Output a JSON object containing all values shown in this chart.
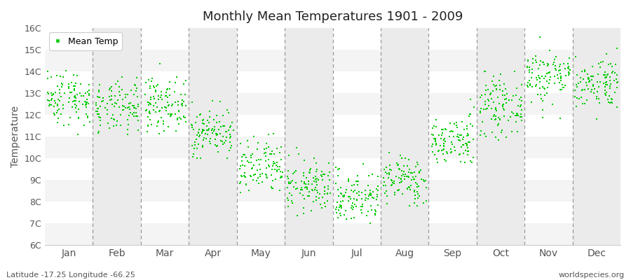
{
  "title": "Monthly Mean Temperatures 1901 - 2009",
  "ylabel": "Temperature",
  "bottom_left": "Latitude -17.25 Longitude -66.25",
  "bottom_right": "worldspecies.org",
  "legend_label": "Mean Temp",
  "ylim": [
    6,
    16
  ],
  "ytick_labels": [
    "6C",
    "7C",
    "8C",
    "9C",
    "10C",
    "11C",
    "12C",
    "13C",
    "14C",
    "15C",
    "16C"
  ],
  "ytick_values": [
    6,
    7,
    8,
    9,
    10,
    11,
    12,
    13,
    14,
    15,
    16
  ],
  "months": [
    "Jan",
    "Feb",
    "Mar",
    "Apr",
    "May",
    "Jun",
    "Jul",
    "Aug",
    "Sep",
    "Oct",
    "Nov",
    "Dec"
  ],
  "dot_color": "#00CC00",
  "background_color": "#ffffff",
  "band_color_odd": "#ebebeb",
  "band_color_even": "#ffffff",
  "seed": 42,
  "n_years": 109,
  "mean_temps": [
    12.8,
    12.3,
    12.5,
    11.2,
    9.5,
    8.7,
    8.2,
    9.0,
    10.8,
    12.4,
    13.8,
    13.5
  ],
  "std_temps": [
    0.65,
    0.6,
    0.6,
    0.55,
    0.65,
    0.6,
    0.6,
    0.55,
    0.6,
    0.65,
    0.65,
    0.6
  ],
  "min_temps": [
    10.8,
    10.5,
    10.8,
    10.0,
    7.8,
    6.8,
    6.5,
    7.8,
    9.8,
    10.5,
    11.8,
    11.8
  ],
  "max_temps": [
    15.2,
    14.5,
    14.7,
    13.0,
    11.2,
    10.5,
    10.4,
    10.8,
    13.0,
    14.0,
    16.2,
    15.5
  ]
}
